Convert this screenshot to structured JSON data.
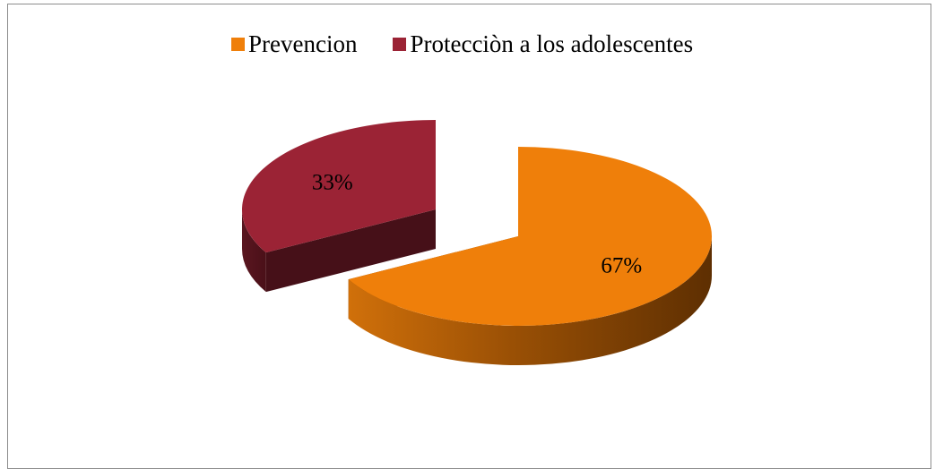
{
  "chart_data": {
    "type": "pie",
    "style": "3d-exploded",
    "title": "",
    "legend_position": "top",
    "slices": [
      {
        "name": "Prevencion",
        "value": 67,
        "label": "67%",
        "color": "#ef7f0a",
        "exploded": false
      },
      {
        "name": "Protecciòn a los adolescentes",
        "value": 33,
        "label": "33%",
        "color": "#9b2335",
        "exploded": true
      }
    ]
  }
}
